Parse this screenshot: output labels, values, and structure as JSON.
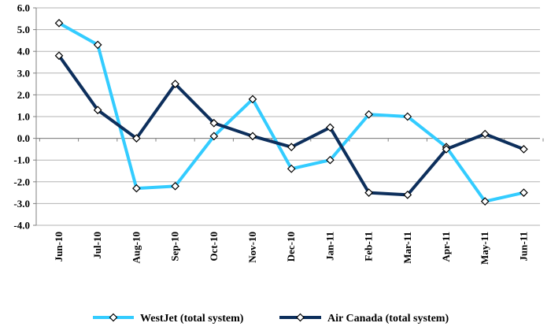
{
  "chart_data": {
    "type": "line",
    "title": "",
    "xlabel": "",
    "ylabel": "",
    "categories": [
      "Jun-10",
      "Jul-10",
      "Aug-10",
      "Sep-10",
      "Oct-10",
      "Nov-10",
      "Dec-10",
      "Jan-11",
      "Feb-11",
      "Mar-11",
      "Apr-11",
      "May-11",
      "Jun-11"
    ],
    "ylim": [
      -4.0,
      6.0
    ],
    "yticks": [
      "6.0",
      "5.0",
      "4.0",
      "3.0",
      "2.0",
      "1.0",
      "0.0",
      "-1.0",
      "-2.0",
      "-3.0",
      "-4.0"
    ],
    "grid": "horizontal",
    "legend": "bottom",
    "series": [
      {
        "name": "WestJet (total system)",
        "color": "#33ccff",
        "values": [
          5.3,
          4.3,
          -2.3,
          -2.2,
          0.1,
          1.8,
          -1.4,
          -1.0,
          1.1,
          1.0,
          -0.4,
          -2.9,
          -2.5
        ]
      },
      {
        "name": "Air Canada (total system)",
        "color": "#0d2f5c",
        "values": [
          3.8,
          1.3,
          0.0,
          2.5,
          0.7,
          0.1,
          -0.4,
          0.5,
          -2.5,
          -2.6,
          -0.5,
          0.2,
          -0.5
        ]
      }
    ]
  }
}
